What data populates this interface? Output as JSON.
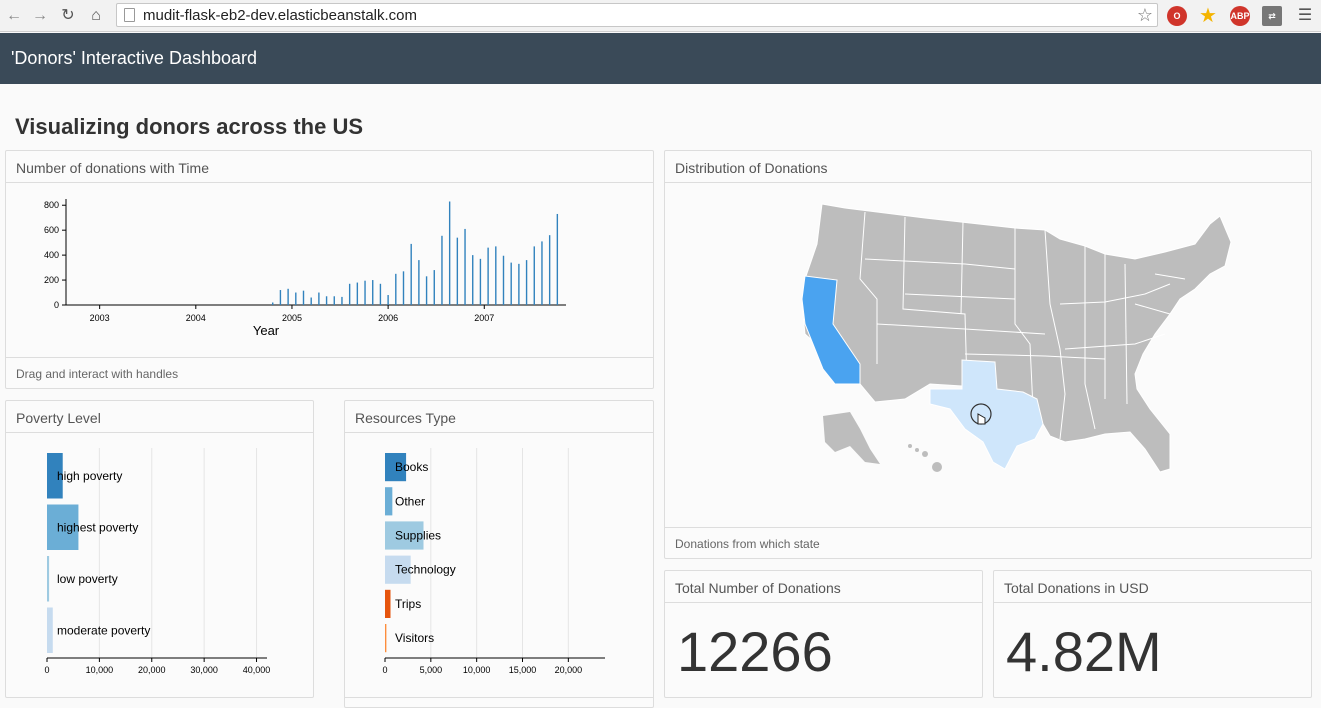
{
  "browser": {
    "url": "mudit-flask-eb2-dev.elasticbeanstalk.com",
    "extensions": [
      "opera-icon",
      "bookmark-star-icon",
      "adblock-icon",
      "sync-icon"
    ],
    "adblock_label": "ABP"
  },
  "app": {
    "title": "'Donors' Interactive Dashboard"
  },
  "page": {
    "heading": "Visualizing donors across the US"
  },
  "panels": {
    "time": {
      "title": "Number of donations with Time",
      "footer": "Drag and interact with handles"
    },
    "poverty": {
      "title": "Poverty Level"
    },
    "resources": {
      "title": "Resources Type"
    },
    "map": {
      "title": "Distribution of Donations",
      "footer": "Donations from which state"
    },
    "total_count": {
      "title": "Total Number of Donations",
      "value": "12266"
    },
    "total_usd": {
      "title": "Total Donations in USD",
      "value": "4.82M"
    }
  },
  "colors": {
    "bar": "#3182bd",
    "accent": "#e6550d",
    "map_default": "#bdbdbd",
    "california": "#4aa3f0",
    "texas": "#cfe6fb"
  },
  "chart_data": [
    {
      "type": "bar",
      "xlabel": "Year",
      "ylabel": "",
      "x_ticks": [
        "2003",
        "2004",
        "2005",
        "2006",
        "2007"
      ],
      "y_ticks": [
        "0",
        "200",
        "400",
        "600",
        "800"
      ],
      "ylim": [
        0,
        850
      ],
      "x_range": [
        2002.65,
        2007.85
      ],
      "x": [
        2004.8,
        2004.88,
        2004.96,
        2005.04,
        2005.12,
        2005.2,
        2005.28,
        2005.36,
        2005.44,
        2005.52,
        2005.6,
        2005.68,
        2005.76,
        2005.84,
        2005.92,
        2006.0,
        2006.08,
        2006.16,
        2006.24,
        2006.32,
        2006.4,
        2006.48,
        2006.56,
        2006.64,
        2006.72,
        2006.8,
        2006.88,
        2006.96,
        2007.04,
        2007.12,
        2007.2,
        2007.28,
        2007.36,
        2007.44,
        2007.52,
        2007.6,
        2007.68,
        2007.76
      ],
      "values": [
        20,
        120,
        130,
        100,
        115,
        60,
        100,
        70,
        70,
        65,
        170,
        180,
        195,
        200,
        170,
        80,
        250,
        270,
        490,
        360,
        230,
        280,
        555,
        830,
        540,
        610,
        400,
        370,
        460,
        470,
        395,
        340,
        330,
        360,
        470,
        510,
        560,
        730
      ]
    },
    {
      "type": "bar",
      "orientation": "horizontal",
      "categories": [
        "high poverty",
        "highest poverty",
        "low poverty",
        "moderate poverty"
      ],
      "values": [
        3000,
        6000,
        400,
        1100
      ],
      "x_ticks": [
        "0",
        "10,000",
        "20,000",
        "30,000",
        "40,000"
      ],
      "xlim": [
        0,
        42000
      ],
      "colors": [
        "#3182bd",
        "#6baed6",
        "#9ecae1",
        "#c6dbef"
      ]
    },
    {
      "type": "bar",
      "orientation": "horizontal",
      "categories": [
        "Books",
        "Other",
        "Supplies",
        "Technology",
        "Trips",
        "Visitors"
      ],
      "values": [
        2300,
        800,
        4200,
        2800,
        600,
        150
      ],
      "x_ticks": [
        "0",
        "5,000",
        "10,000",
        "15,000",
        "20,000"
      ],
      "xlim": [
        0,
        24000
      ],
      "colors": [
        "#3182bd",
        "#6baed6",
        "#9ecae1",
        "#c6dbef",
        "#e6550d",
        "#fd8d3c"
      ]
    }
  ]
}
